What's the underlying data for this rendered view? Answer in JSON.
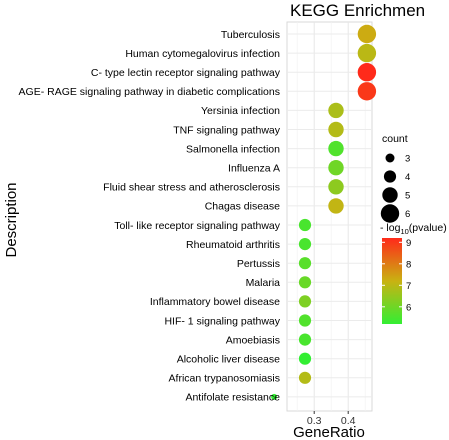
{
  "chart_data": {
    "type": "scatter",
    "title": "KEGG Enrichmen",
    "xlabel": "GeneRatio",
    "ylabel": "Description",
    "xlim": [
      0.22,
      0.47
    ],
    "xticks": [
      "0.3",
      "0.4"
    ],
    "xtick_values": [
      0.3,
      0.4
    ],
    "grid": true,
    "legend_position": "right",
    "size_legend": {
      "title": "count",
      "values": [
        3,
        4,
        5,
        6
      ],
      "labels": [
        "3",
        "4",
        "5",
        "6"
      ]
    },
    "color_legend": {
      "title_prefix": "- log",
      "title_sub": "10",
      "title_suffix": "(pvalue)",
      "min": 5.2,
      "max": 9.2,
      "ticks": [
        6,
        7,
        8,
        9
      ],
      "tick_labels": [
        "6",
        "7",
        "8",
        "9"
      ],
      "low_color": "#33ee33",
      "mid_color": "#c9b212",
      "high_color": "#ff2a1a"
    },
    "points": [
      {
        "label": "Tuberculosis",
        "gene_ratio": 0.455,
        "count": 6,
        "neglog10p": 7.3
      },
      {
        "label": "Human cytomegalovirus infection",
        "gene_ratio": 0.455,
        "count": 6,
        "neglog10p": 7.0
      },
      {
        "label": "C- type lectin receptor signaling pathway",
        "gene_ratio": 0.455,
        "count": 6,
        "neglog10p": 9.2
      },
      {
        "label": "AGE- RAGE signaling pathway in diabetic complications",
        "gene_ratio": 0.455,
        "count": 6,
        "neglog10p": 9.0
      },
      {
        "label": "Yersinia infection",
        "gene_ratio": 0.364,
        "count": 5,
        "neglog10p": 6.8
      },
      {
        "label": "TNF signaling pathway",
        "gene_ratio": 0.364,
        "count": 5,
        "neglog10p": 6.9
      },
      {
        "label": "Salmonella infection",
        "gene_ratio": 0.364,
        "count": 5,
        "neglog10p": 5.6
      },
      {
        "label": "Influenza A",
        "gene_ratio": 0.364,
        "count": 5,
        "neglog10p": 6.0
      },
      {
        "label": "Fluid shear stress and atherosclerosis",
        "gene_ratio": 0.364,
        "count": 5,
        "neglog10p": 6.4
      },
      {
        "label": "Chagas disease",
        "gene_ratio": 0.364,
        "count": 5,
        "neglog10p": 7.1
      },
      {
        "label": "Toll- like receptor signaling pathway",
        "gene_ratio": 0.273,
        "count": 4,
        "neglog10p": 5.5
      },
      {
        "label": "Rheumatoid arthritis",
        "gene_ratio": 0.273,
        "count": 4,
        "neglog10p": 5.5
      },
      {
        "label": "Pertussis",
        "gene_ratio": 0.273,
        "count": 4,
        "neglog10p": 5.7
      },
      {
        "label": "Malaria",
        "gene_ratio": 0.273,
        "count": 4,
        "neglog10p": 5.9
      },
      {
        "label": "Inflammatory bowel disease",
        "gene_ratio": 0.273,
        "count": 4,
        "neglog10p": 6.2
      },
      {
        "label": "HIF- 1 signaling pathway",
        "gene_ratio": 0.273,
        "count": 4,
        "neglog10p": 5.6
      },
      {
        "label": "Amoebiasis",
        "gene_ratio": 0.273,
        "count": 4,
        "neglog10p": 5.5
      },
      {
        "label": "Alcoholic liver disease",
        "gene_ratio": 0.273,
        "count": 4,
        "neglog10p": 5.2
      },
      {
        "label": "African trypanosomiasis",
        "gene_ratio": 0.273,
        "count": 4,
        "neglog10p": 6.9
      },
      {
        "label": "Antifolate resistance",
        "gene_ratio": 0.182,
        "count": 2,
        "neglog10p": 5.2
      }
    ]
  }
}
